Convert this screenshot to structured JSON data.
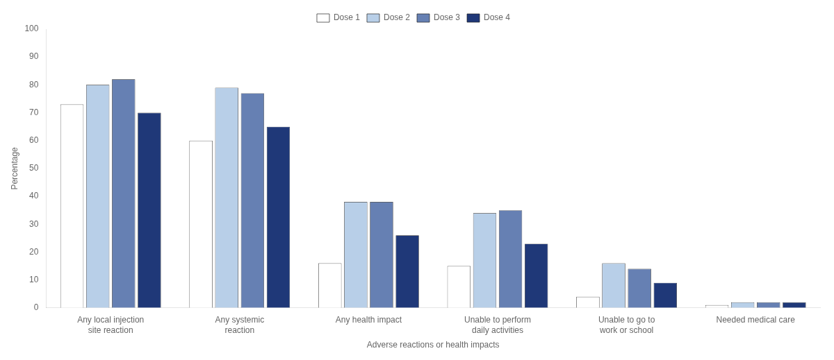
{
  "chart_data": {
    "type": "bar",
    "categories": [
      "Any local injection\nsite reaction",
      "Any systemic\nreaction",
      "Any health impact",
      "Unable to perform\ndaily activities",
      "Unable to go to\nwork or school",
      "Needed medical care"
    ],
    "series": [
      {
        "name": "Dose 1",
        "color": "#ffffff",
        "values": [
          73,
          60,
          16,
          15,
          4,
          1
        ]
      },
      {
        "name": "Dose 2",
        "color": "#b8cfe8",
        "values": [
          80,
          79,
          38,
          34,
          16,
          2
        ]
      },
      {
        "name": "Dose 3",
        "color": "#6680b3",
        "values": [
          82,
          77,
          38,
          35,
          14,
          2
        ]
      },
      {
        "name": "Dose 4",
        "color": "#1f3878",
        "values": [
          70,
          65,
          26,
          23,
          9,
          2
        ]
      }
    ],
    "xlabel": "Adverse reactions or health impacts",
    "ylabel": "Percentage",
    "ylim": [
      0,
      100
    ],
    "yticks": [
      0,
      10,
      20,
      30,
      40,
      50,
      60,
      70,
      80,
      90,
      100
    ],
    "grid": false,
    "legend": "top"
  }
}
